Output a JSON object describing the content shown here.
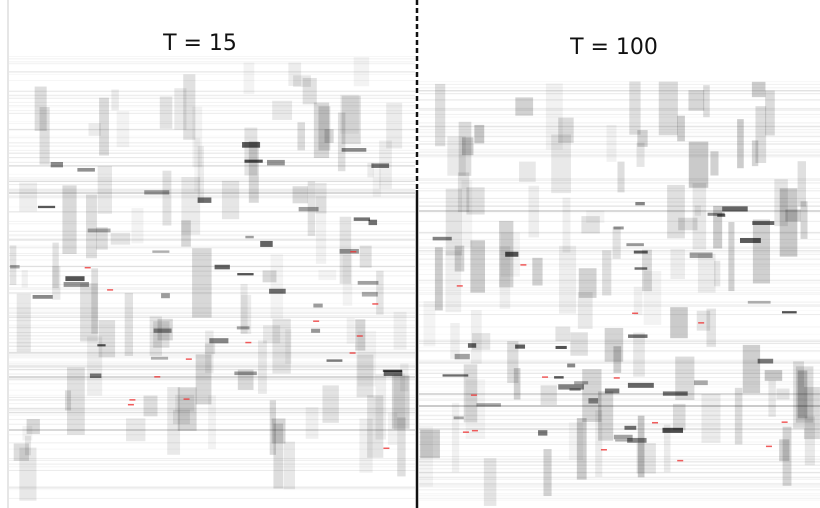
{
  "panels": [
    {
      "title": "T = 15"
    },
    {
      "title": "T = 100"
    }
  ]
}
